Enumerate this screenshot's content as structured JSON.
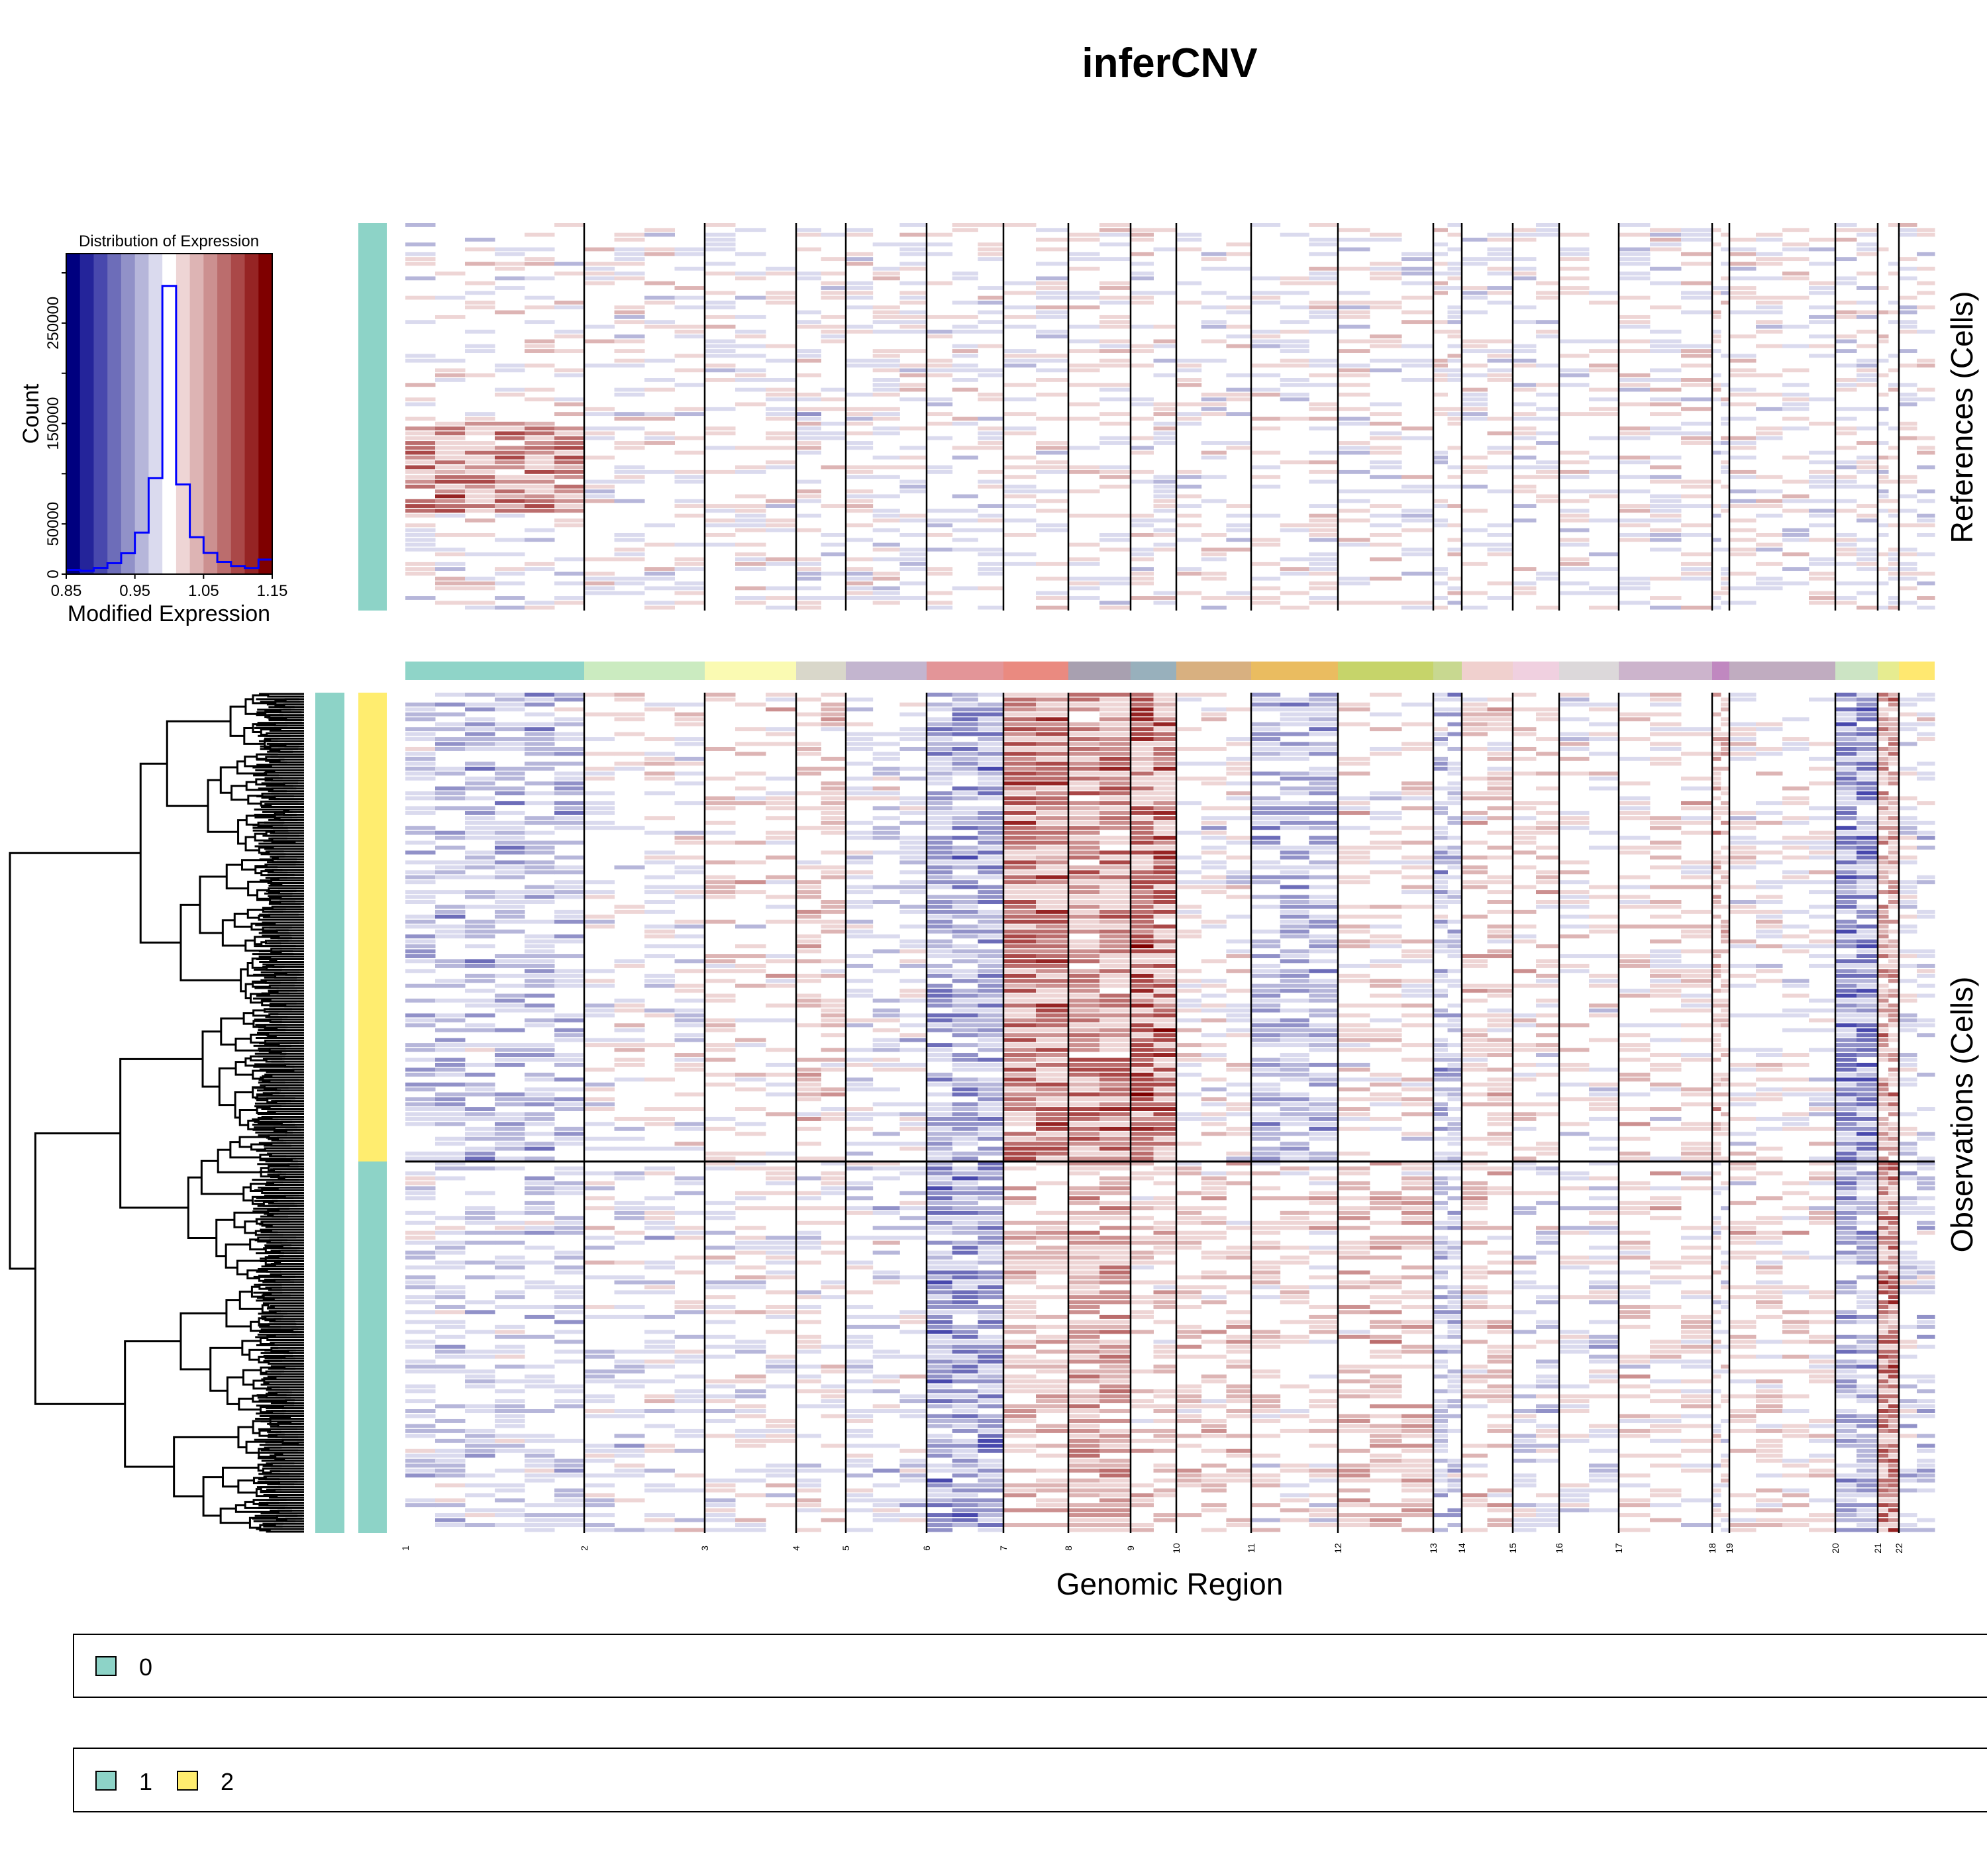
{
  "title": "inferCNV",
  "chart_data": [
    {
      "type": "bar",
      "title": "Distribution of Expression",
      "xlabel": "Modified Expression",
      "ylabel": "Count",
      "xlim": [
        0.85,
        1.15
      ],
      "ylim": [
        0,
        300000
      ],
      "x_ticks": [
        "0.85",
        "0.95",
        "1.05",
        "1.15"
      ],
      "y_ticks": [
        "0",
        "50000",
        "150000",
        "250000"
      ],
      "bin_edges": [
        0.85,
        0.87,
        0.89,
        0.91,
        0.93,
        0.95,
        0.97,
        0.99,
        1.01,
        1.03,
        1.05,
        1.07,
        1.09,
        1.11,
        1.13,
        1.15
      ],
      "values": [
        4300,
        3300,
        6300,
        10900,
        20800,
        41400,
        95700,
        287000,
        89300,
        36800,
        21100,
        12200,
        8100,
        6100,
        14500
      ],
      "line_color": "#0000ff",
      "bin_colors": [
        "#00007f",
        "#24249a",
        "#4848ad",
        "#6d6db9",
        "#9191c8",
        "#b6b6da",
        "#dadaee",
        "#ffffff",
        "#eed5d5",
        "#ddb4b4",
        "#cc9090",
        "#bb6d6d",
        "#aa4848",
        "#962424",
        "#7f0000"
      ]
    },
    {
      "type": "heatmap",
      "xlabel": "Genomic Region",
      "panels": [
        {
          "ylabel": "References (Cells)"
        },
        {
          "ylabel": "Observations (Cells)"
        }
      ],
      "x_categories": [
        "1",
        "2",
        "3",
        "4",
        "5",
        "6",
        "7",
        "8",
        "9",
        "10",
        "11",
        "12",
        "13",
        "14",
        "15",
        "16",
        "17",
        "18",
        "19",
        "20",
        "21",
        "22"
      ],
      "chromosome_colors": [
        "#8fd4c8",
        "#cbebc0",
        "#fafab2",
        "#d9d7ca",
        "#c3b5cf",
        "#e39598",
        "#ea8a80",
        "#a8a0b0",
        "#98b0bc",
        "#d8b080",
        "#eabc60",
        "#c6d46a",
        "#c8d890",
        "#f0d0ce",
        "#f0d0e0",
        "#dcd8da",
        "#ccb4cc",
        "#c088c0",
        "#c0acc0",
        "#cce4c4",
        "#e6ec90",
        "#ffe870"
      ],
      "color_scale": {
        "low": "#00007f",
        "mid": "#ffffff",
        "high": "#7f0000",
        "range": [
          0.85,
          1.15
        ]
      }
    }
  ],
  "legends": [
    {
      "items": [
        {
          "label": "0",
          "color": "#8dd3c7"
        }
      ]
    },
    {
      "items": [
        {
          "label": "1",
          "color": "#8dd3c7"
        },
        {
          "label": "2",
          "color": "#ffed6f"
        }
      ]
    }
  ],
  "annotations": {
    "reference_group_color": "#8dd3c7",
    "observation_groups": [
      {
        "label": "2",
        "color": "#ffed6f"
      },
      {
        "label": "1",
        "color": "#8dd3c7"
      }
    ]
  }
}
